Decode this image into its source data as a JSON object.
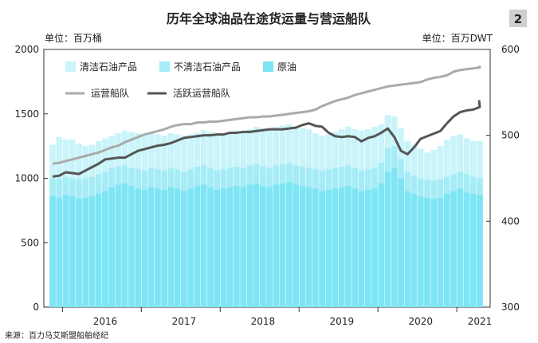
{
  "chart_data": {
    "title": "历年全球油品在途货运量与营运船队",
    "badge": "2",
    "left_unit": "单位：百万桶",
    "right_unit": "单位：百万DWT",
    "source": "来源：百力马艾斯盟船舶经纪",
    "type": "bar",
    "stacked": true,
    "grid": false,
    "legend_position": "top-left",
    "x_ticks": [
      "2016",
      "2017",
      "2018",
      "2019",
      "2020",
      "2021"
    ],
    "y_left": {
      "ylim": [
        0,
        2000
      ],
      "ticks": [
        0,
        500,
        1000,
        1500,
        2000
      ]
    },
    "y_right": {
      "ylim": [
        300,
        600
      ],
      "ticks": [
        300,
        400,
        500,
        600
      ]
    },
    "colors": {
      "clean": "#c8f4fa",
      "dirty": "#a6ecf6",
      "crude": "#7de5f4",
      "fleet": "#aaaaaa",
      "active_fleet": "#555555"
    },
    "bar_series": [
      {
        "name": "清洁石油产品",
        "key": "clean"
      },
      {
        "name": "不清洁石油产品",
        "key": "dirty"
      },
      {
        "name": "原油",
        "key": "crude"
      }
    ],
    "line_series": [
      {
        "name": "运营船队",
        "key": "fleet",
        "axis": "right"
      },
      {
        "name": "活跃运营船队",
        "key": "active_fleet",
        "axis": "right"
      }
    ],
    "months": [
      "2015-11",
      "2015-12",
      "2016-01",
      "2016-02",
      "2016-03",
      "2016-04",
      "2016-05",
      "2016-06",
      "2016-07",
      "2016-08",
      "2016-09",
      "2016-10",
      "2016-11",
      "2016-12",
      "2017-01",
      "2017-02",
      "2017-03",
      "2017-04",
      "2017-05",
      "2017-06",
      "2017-07",
      "2017-08",
      "2017-09",
      "2017-10",
      "2017-11",
      "2017-12",
      "2018-01",
      "2018-02",
      "2018-03",
      "2018-04",
      "2018-05",
      "2018-06",
      "2018-07",
      "2018-08",
      "2018-09",
      "2018-10",
      "2018-11",
      "2018-12",
      "2019-01",
      "2019-02",
      "2019-03",
      "2019-04",
      "2019-05",
      "2019-06",
      "2019-07",
      "2019-08",
      "2019-09",
      "2019-10",
      "2019-11",
      "2019-12",
      "2020-01",
      "2020-02",
      "2020-03",
      "2020-04",
      "2020-05",
      "2020-06",
      "2020-07",
      "2020-08",
      "2020-09",
      "2020-10",
      "2020-11",
      "2020-12",
      "2021-01",
      "2021-02",
      "2021-03",
      "2021-04"
    ],
    "crude": [
      860,
      850,
      870,
      860,
      840,
      850,
      860,
      880,
      900,
      930,
      950,
      960,
      940,
      920,
      910,
      930,
      920,
      910,
      930,
      920,
      900,
      920,
      940,
      950,
      930,
      910,
      920,
      930,
      940,
      930,
      950,
      960,
      940,
      930,
      950,
      960,
      970,
      950,
      940,
      930,
      920,
      900,
      910,
      920,
      930,
      940,
      920,
      900,
      910,
      920,
      960,
      1050,
      1080,
      1000,
      900,
      880,
      860,
      850,
      840,
      850,
      880,
      900,
      920,
      890,
      880,
      870
    ],
    "dirty": [
      1000,
      1000,
      1010,
      1000,
      990,
      1000,
      1010,
      1030,
      1050,
      1080,
      1090,
      1100,
      1080,
      1070,
      1060,
      1080,
      1070,
      1060,
      1080,
      1070,
      1050,
      1070,
      1090,
      1100,
      1080,
      1060,
      1070,
      1080,
      1090,
      1080,
      1100,
      1110,
      1090,
      1080,
      1100,
      1110,
      1120,
      1100,
      1090,
      1080,
      1070,
      1060,
      1070,
      1080,
      1090,
      1100,
      1080,
      1060,
      1070,
      1080,
      1120,
      1230,
      1250,
      1150,
      1050,
      1020,
      1000,
      990,
      980,
      990,
      1010,
      1030,
      1050,
      1030,
      1010,
      1000
    ],
    "clean": [
      1260,
      1320,
      1300,
      1300,
      1270,
      1250,
      1260,
      1290,
      1310,
      1330,
      1350,
      1370,
      1360,
      1350,
      1340,
      1350,
      1340,
      1330,
      1350,
      1340,
      1330,
      1340,
      1350,
      1370,
      1360,
      1340,
      1350,
      1360,
      1370,
      1360,
      1380,
      1400,
      1390,
      1380,
      1400,
      1410,
      1420,
      1400,
      1390,
      1380,
      1350,
      1330,
      1340,
      1360,
      1380,
      1400,
      1380,
      1370,
      1380,
      1400,
      1420,
      1490,
      1480,
      1390,
      1290,
      1260,
      1230,
      1200,
      1220,
      1250,
      1300,
      1330,
      1340,
      1310,
      1290,
      1290
    ],
    "fleet": [
      467,
      468,
      470,
      472,
      474,
      476,
      478,
      480,
      483,
      486,
      488,
      492,
      495,
      498,
      501,
      503,
      505,
      507,
      510,
      512,
      513,
      513,
      515,
      515,
      516,
      516,
      517,
      518,
      519,
      520,
      521,
      521,
      522,
      522,
      523,
      524,
      525,
      526,
      527,
      528,
      530,
      534,
      537,
      540,
      542,
      544,
      547,
      549,
      551,
      553,
      555,
      557,
      558,
      559,
      560,
      561,
      562,
      565,
      567,
      568,
      570,
      574,
      576,
      577,
      578,
      579
    ],
    "active_fleet": [
      452,
      453,
      457,
      456,
      455,
      459,
      463,
      467,
      472,
      473,
      474,
      474,
      478,
      482,
      484,
      486,
      488,
      489,
      491,
      494,
      497,
      498,
      499,
      500,
      500,
      501,
      501,
      503,
      503,
      504,
      504,
      505,
      506,
      507,
      507,
      507,
      508,
      509,
      512,
      514,
      511,
      510,
      503,
      499,
      498,
      499,
      498,
      493,
      497,
      499,
      503,
      508,
      498,
      482,
      478,
      486,
      496,
      499,
      502,
      505,
      514,
      522,
      527,
      529,
      530,
      533
    ],
    "fleet_ext": 581,
    "active_ext": 541
  }
}
